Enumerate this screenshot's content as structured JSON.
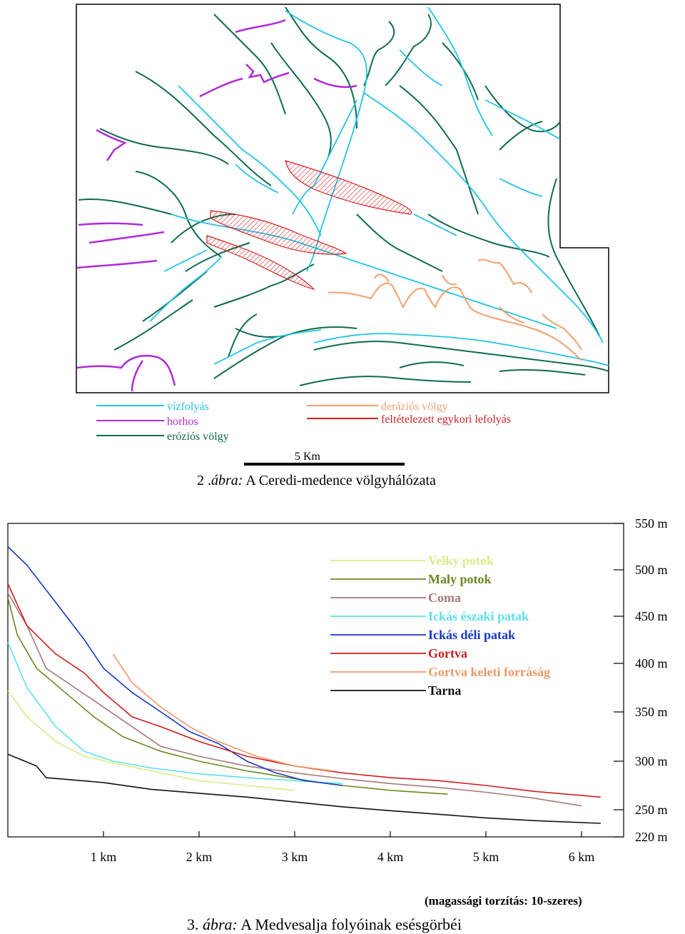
{
  "map": {
    "legend": [
      {
        "label": "vízfolyás",
        "color": "#22c4e6"
      },
      {
        "label": "horhos",
        "color": "#b02ad8"
      },
      {
        "label": "eróziós völgy",
        "color": "#0f6b4c"
      },
      {
        "label": "deráziós völgy",
        "color": "#f0a070"
      },
      {
        "label": "feltételezett egykori lefolyás",
        "color": "#d42020"
      }
    ],
    "scale_label": "5 Km"
  },
  "caption1": {
    "number": "2 .",
    "word": "ábra:",
    "text": "A Ceredi-medence völgyhálózata"
  },
  "chart_data": {
    "type": "line",
    "xlabel": "",
    "ylabel": "",
    "x_tick_labels": [
      "1 km",
      "2 km",
      "3 km",
      "4 km",
      "5 km",
      "6 km"
    ],
    "y_tick_labels": [
      "550 m",
      "500 m",
      "450 m",
      "400 m",
      "350 m",
      "300 m",
      "250 m",
      "220 m"
    ],
    "y_tick_values": [
      550,
      500,
      450,
      400,
      350,
      300,
      250,
      220
    ],
    "xlim": [
      0,
      6.5
    ],
    "ylim": [
      220,
      550
    ],
    "legend_position": "top-right",
    "series": [
      {
        "name": "Velky potok",
        "color": "#d8ec88",
        "x": [
          0,
          0.2,
          0.5,
          0.8,
          1.2,
          1.6,
          2.0,
          2.5,
          3.0
        ],
        "y": [
          372,
          345,
          320,
          305,
          296,
          288,
          280,
          275,
          270
        ]
      },
      {
        "name": "Maly potok",
        "color": "#6a8a22",
        "x": [
          0,
          0.1,
          0.3,
          0.6,
          0.9,
          1.2,
          1.6,
          2.0,
          2.5,
          3.0,
          3.5,
          4.0,
          4.6
        ],
        "y": [
          470,
          430,
          395,
          370,
          345,
          325,
          310,
          300,
          290,
          282,
          275,
          270,
          266
        ]
      },
      {
        "name": "Coma",
        "color": "#a87878",
        "x": [
          0,
          0.2,
          0.4,
          0.7,
          1.0,
          1.3,
          1.6,
          2.0,
          2.5,
          3.0,
          3.5,
          4.0,
          4.5,
          5.0,
          5.5,
          6.0
        ],
        "y": [
          475,
          440,
          395,
          375,
          355,
          335,
          315,
          305,
          295,
          288,
          282,
          277,
          273,
          268,
          262,
          254
        ]
      },
      {
        "name": "Ickás északi patak",
        "color": "#5ce0ec",
        "x": [
          0,
          0.2,
          0.5,
          0.8,
          1.1,
          1.5,
          2.0,
          2.5,
          3.0,
          3.5
        ],
        "y": [
          422,
          375,
          335,
          310,
          300,
          293,
          287,
          283,
          280,
          277
        ]
      },
      {
        "name": "Ickás déli patak",
        "color": "#1638c8",
        "x": [
          0,
          0.2,
          0.5,
          0.8,
          1.0,
          1.3,
          1.6,
          1.9,
          2.2,
          2.5,
          2.8,
          3.1,
          3.5
        ],
        "y": [
          525,
          505,
          465,
          425,
          395,
          370,
          350,
          330,
          318,
          300,
          288,
          280,
          275
        ]
      },
      {
        "name": "Gortva",
        "color": "#d01c1c",
        "x": [
          0,
          0.2,
          0.5,
          0.8,
          1.0,
          1.3,
          1.6,
          2.0,
          2.5,
          3.0,
          3.5,
          4.0,
          4.5,
          5.0,
          5.5,
          6.2
        ],
        "y": [
          485,
          440,
          410,
          390,
          370,
          345,
          335,
          320,
          305,
          295,
          288,
          283,
          280,
          275,
          269,
          263
        ]
      },
      {
        "name": "Gortva keleti forráság",
        "color": "#f09868",
        "x": [
          1.1,
          1.3,
          1.6,
          1.9,
          2.2,
          2.6,
          3.0,
          3.4
        ],
        "y": [
          410,
          380,
          355,
          335,
          320,
          305,
          295,
          290
        ]
      },
      {
        "name": "Tarna",
        "color": "#111111",
        "x": [
          0,
          0.3,
          0.4,
          1.0,
          1.5,
          2.0,
          2.5,
          3.0,
          3.5,
          4.0,
          4.5,
          5.0,
          5.5,
          6.2
        ],
        "y": [
          307,
          295,
          283,
          278,
          271,
          267,
          263,
          258,
          253,
          249,
          245,
          241,
          238,
          235
        ]
      }
    ]
  },
  "distortion_note": "(magassági torzítás: 10-szeres)",
  "caption2": {
    "number": "3.",
    "word": "ábra:",
    "text": "A Medvesalja folyóinak esésgörbéi"
  }
}
